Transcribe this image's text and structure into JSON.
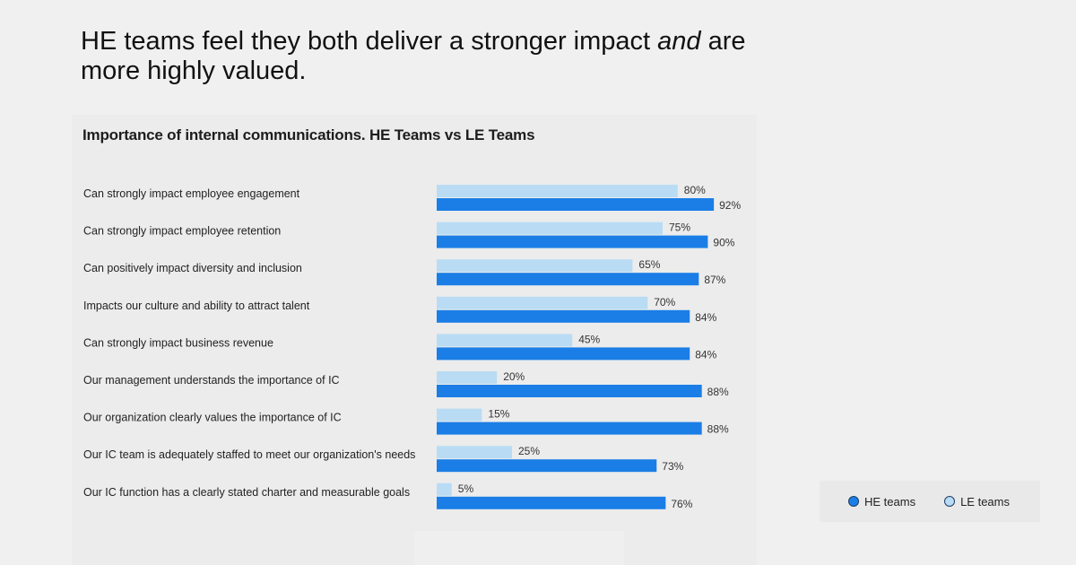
{
  "headline": {
    "line1_prefix": "HE teams feel they both deliver a stronger impact ",
    "line1_em": "and",
    "line1_suffix": " are",
    "line2": "more highly valued."
  },
  "colors": {
    "he": "#1a7ee6",
    "le": "#b9dcf4",
    "background": "#f0f0f0"
  },
  "legend": {
    "he_label": "HE teams",
    "le_label": "LE teams"
  },
  "chart_data": {
    "type": "bar",
    "orientation": "horizontal",
    "title": "Importance of internal communications. HE Teams vs LE Teams",
    "xlim": [
      0,
      100
    ],
    "grid": false,
    "legend_position": "bottom-right",
    "categories": [
      "Can strongly impact employee engagement",
      "Can strongly impact employee retention",
      "Can positively impact diversity and inclusion",
      "Impacts our culture and ability to attract talent",
      "Can strongly impact business revenue",
      "Our management understands the importance of IC",
      "Our organization clearly values the importance of IC",
      "Our IC team is adequately staffed to meet our organization's needs",
      "Our IC function has a clearly stated charter and measurable goals"
    ],
    "series": [
      {
        "name": "LE teams",
        "color": "#b9dcf4",
        "values": [
          80,
          75,
          65,
          70,
          45,
          20,
          15,
          25,
          5
        ]
      },
      {
        "name": "HE teams",
        "color": "#1a7ee6",
        "values": [
          92,
          90,
          87,
          84,
          84,
          88,
          88,
          73,
          76
        ]
      }
    ]
  }
}
